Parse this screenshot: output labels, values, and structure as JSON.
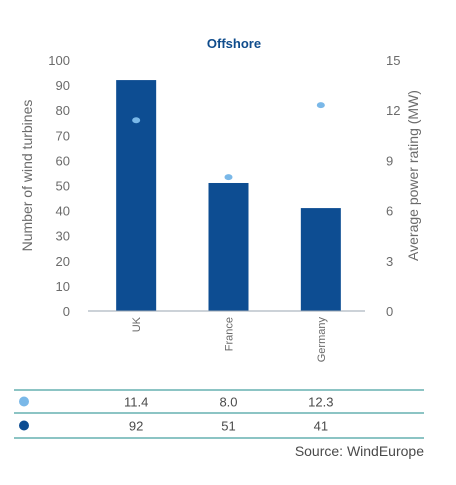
{
  "chart_data": {
    "type": "bar",
    "title": "Offshore",
    "categories": [
      "UK",
      "France",
      "Germany"
    ],
    "series": [
      {
        "values": [
          92,
          51,
          41
        ],
        "color": "#0d4d92",
        "kind": "bar",
        "axis": "left"
      },
      {
        "values": [
          11.4,
          8.0,
          12.3
        ],
        "color": "#7ab8e8",
        "kind": "dot",
        "axis": "right"
      }
    ],
    "ylabel": "Number of wind turbines",
    "ylim": [
      0,
      100
    ],
    "y_ticks": [
      0,
      10,
      20,
      30,
      40,
      50,
      60,
      70,
      80,
      90,
      100
    ],
    "y2label": "Average power rating (MW)",
    "y2lim": [
      0,
      15
    ],
    "y2_ticks": [
      0,
      3,
      6,
      9,
      12,
      15
    ],
    "grid": false
  },
  "table": {
    "rows": [
      {
        "marker_color": "#7ab8e8",
        "values": [
          "11.4",
          "8.0",
          "12.3"
        ]
      },
      {
        "marker_color": "#0d4d92",
        "values": [
          "92",
          "51",
          "41"
        ]
      }
    ],
    "line_color": "#1a8a8a"
  },
  "source": "Source: WindEurope"
}
